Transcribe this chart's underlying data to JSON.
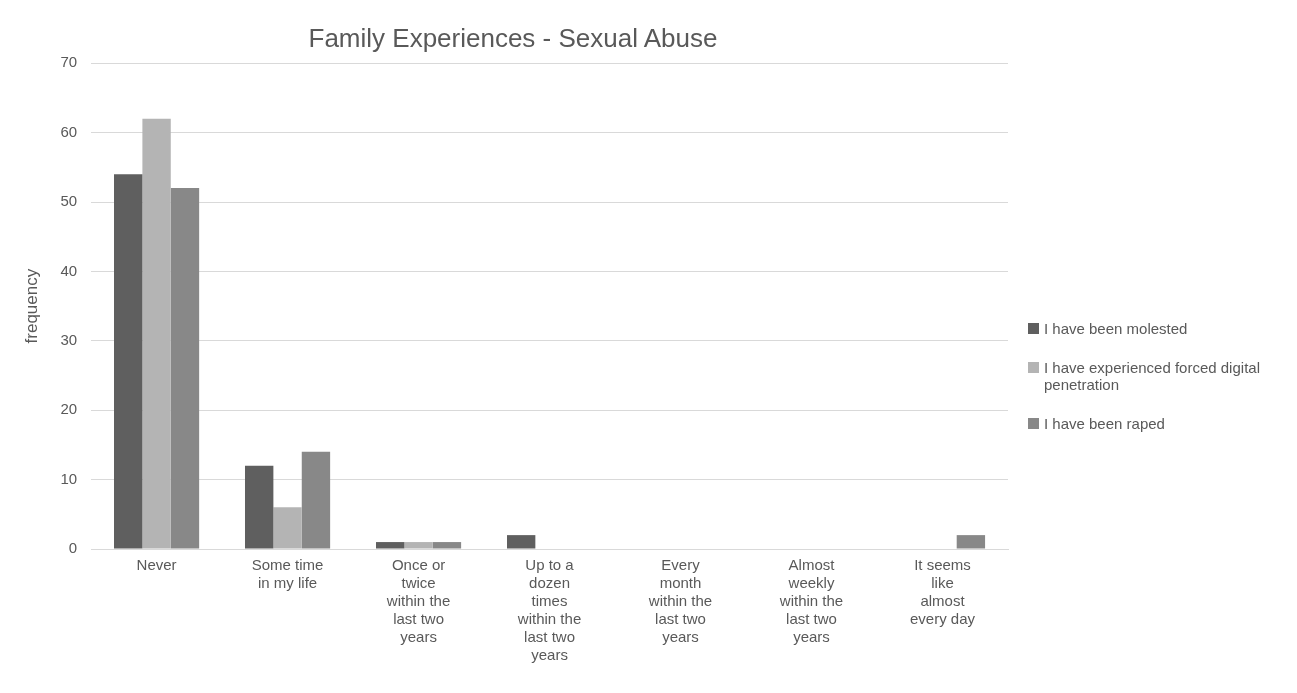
{
  "chart_data": {
    "type": "bar",
    "title": "Family Experiences - Sexual Abuse",
    "ylabel": "frequency",
    "categories": [
      "Never",
      "Some time in my life",
      "Once or twice within the last two years",
      "Up to a dozen times within the last two years",
      "Every month within the last two years",
      "Almost weekly within the last two years",
      "It seems like almost every day"
    ],
    "series": [
      {
        "name": "I have been molested",
        "color": "#5f5f5f",
        "values": [
          54,
          12,
          1,
          2,
          0,
          0,
          0
        ]
      },
      {
        "name": "I have experienced forced digital penetration",
        "color": "#b4b4b4",
        "values": [
          62,
          6,
          1,
          0,
          0,
          0,
          0
        ]
      },
      {
        "name": "I have been raped",
        "color": "#888888",
        "values": [
          52,
          14,
          1,
          0,
          0,
          0,
          2
        ]
      }
    ],
    "ylim": [
      0,
      70
    ],
    "yticks": [
      0,
      10,
      20,
      30,
      40,
      50,
      60,
      70
    ],
    "grid": "y",
    "legend": "right"
  }
}
